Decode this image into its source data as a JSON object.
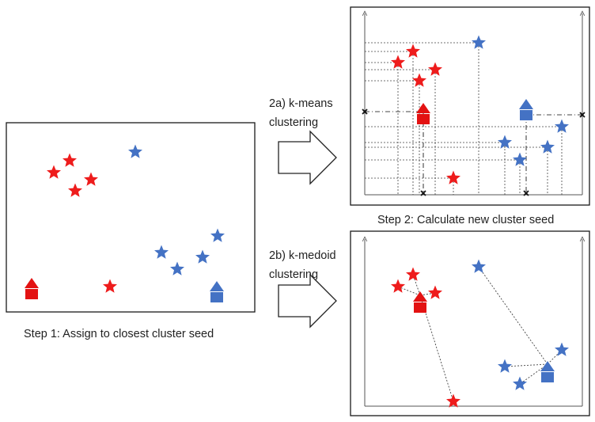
{
  "labels": {
    "step1": "Step 1: Assign to closest cluster seed",
    "step2": "Step 2: Calculate new cluster seed",
    "kmeans_line1": "2a) k-means",
    "kmeans_line2": "clustering",
    "kmedoid_line1": "2b) k-medoid",
    "kmedoid_line2": "clustering"
  },
  "colors": {
    "red_cluster": "#ee1c1c",
    "red_seed": "#e31212",
    "blue_cluster": "#4472c4",
    "blue_seed": "#4472c4",
    "frame": "#1a1a1a",
    "guide_line": "#444444"
  },
  "icons": {
    "data_point": "star-icon",
    "cluster_seed": "house-icon",
    "transition": "right-arrow-icon",
    "mean_marker": "cross-icon"
  }
}
